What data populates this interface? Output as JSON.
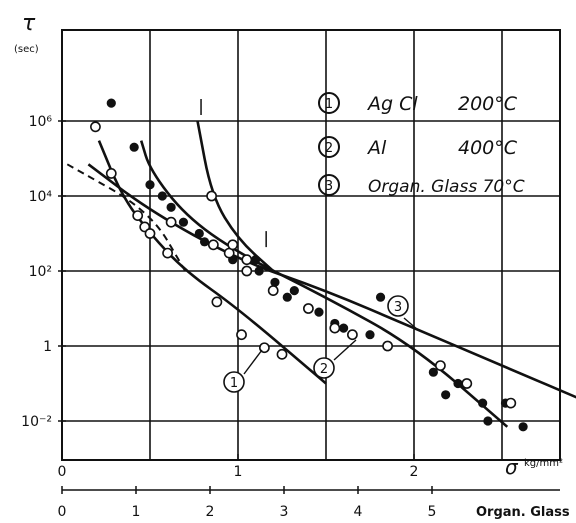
{
  "chart_data": {
    "type": "scatter",
    "title": "",
    "y_axis": {
      "label": "τ",
      "unit": "(sec)",
      "scale": "log",
      "range": [
        0.003,
        30000000
      ],
      "tick_labels": [
        {
          "v": 1000000,
          "t": "10⁶"
        },
        {
          "v": 10000,
          "t": "10⁴"
        },
        {
          "v": 100,
          "t": "10²"
        },
        {
          "v": 1,
          "t": "1"
        },
        {
          "v": 0.01,
          "t": "10⁻²"
        }
      ]
    },
    "x_axis_upper": {
      "label": "σ",
      "unit": "kg/mm²",
      "range": [
        0,
        2.8
      ],
      "ticks": [
        0,
        1,
        2
      ],
      "tick_labels": [
        "0",
        "1",
        "2"
      ]
    },
    "x_axis_lower": {
      "label": "Organ. Glass",
      "range": [
        0,
        7
      ],
      "ticks": [
        0,
        1,
        2,
        3,
        4,
        5
      ],
      "tick_labels": [
        "0",
        "1",
        "2",
        "3",
        "4",
        "5"
      ]
    },
    "grid": true,
    "legend": {
      "position": "top-right",
      "items": [
        {
          "num": "1",
          "material": "Ag Cl",
          "temp": "200°C"
        },
        {
          "num": "2",
          "material": "Al",
          "temp": "400°C"
        },
        {
          "num": "3",
          "material": "Organ. Glass 70°C",
          "temp": ""
        }
      ]
    },
    "curve_labels": [
      "1",
      "2",
      "3"
    ],
    "series": [
      {
        "name": "1",
        "marker": "open",
        "curve": [
          [
            0.21,
            300000
          ],
          [
            0.34,
            10000
          ],
          [
            0.5,
            1000
          ],
          [
            0.7,
            100
          ],
          [
            1.0,
            10
          ],
          [
            1.5,
            0.1
          ]
        ],
        "points": [
          [
            0.19,
            700000
          ],
          [
            0.28,
            40000
          ],
          [
            0.47,
            1500
          ],
          [
            0.5,
            1000
          ],
          [
            0.6,
            300
          ],
          [
            0.88,
            15
          ],
          [
            1.02,
            2
          ],
          [
            1.15,
            0.9
          ],
          [
            1.25,
            0.6
          ]
        ]
      },
      {
        "name": "2",
        "marker": "filled",
        "curve": [
          [
            0.45,
            300000
          ],
          [
            0.5,
            50000
          ],
          [
            0.7,
            3000
          ],
          [
            1.0,
            300
          ],
          [
            1.5,
            20
          ],
          [
            2.0,
            1
          ],
          [
            2.53,
            0.007
          ]
        ],
        "points": [
          [
            0.28,
            3000000
          ],
          [
            0.41,
            200000
          ],
          [
            0.5,
            20000
          ],
          [
            0.57,
            10000
          ],
          [
            0.62,
            5000
          ],
          [
            0.69,
            2000
          ],
          [
            0.78,
            1000
          ],
          [
            0.81,
            600
          ],
          [
            0.97,
            200
          ],
          [
            1.1,
            200
          ],
          [
            1.12,
            100
          ],
          [
            1.21,
            50
          ],
          [
            1.28,
            20
          ],
          [
            1.32,
            30
          ],
          [
            1.46,
            8
          ],
          [
            1.55,
            4
          ],
          [
            1.6,
            3
          ],
          [
            1.75,
            2
          ],
          [
            1.81,
            20
          ],
          [
            2.11,
            0.2
          ],
          [
            2.18,
            0.05
          ],
          [
            2.25,
            0.1
          ],
          [
            2.39,
            0.03
          ],
          [
            2.42,
            0.01
          ],
          [
            2.52,
            0.03
          ],
          [
            2.62,
            0.007
          ]
        ],
        "marked_x": [
          1.16
        ]
      },
      {
        "name": "3",
        "marker": "open",
        "curve": [
          [
            0.15,
            70000
          ],
          [
            0.5,
            4000
          ],
          [
            1.0,
            200
          ],
          [
            1.5,
            30
          ],
          [
            2.0,
            3
          ],
          [
            2.5,
            0.3
          ],
          [
            3.0,
            0.03
          ]
        ],
        "points": [
          [
            0.43,
            3000
          ],
          [
            0.62,
            2000
          ],
          [
            0.86,
            500
          ],
          [
            0.95,
            300
          ],
          [
            1.05,
            100
          ],
          [
            1.2,
            30
          ],
          [
            1.4,
            10
          ],
          [
            1.55,
            3
          ],
          [
            1.65,
            2
          ],
          [
            1.85,
            1
          ],
          [
            2.15,
            0.3
          ],
          [
            2.3,
            0.1
          ],
          [
            2.55,
            0.03
          ],
          [
            3.0,
            0.02
          ]
        ]
      },
      {
        "name": "1 (upper branch)",
        "marker": "open",
        "curve": [
          [
            0.77,
            1000000
          ],
          [
            0.85,
            10000
          ],
          [
            1.0,
            700
          ],
          [
            1.2,
            100
          ]
        ],
        "points": [
          [
            0.85,
            10000
          ],
          [
            0.97,
            500
          ],
          [
            1.05,
            200
          ]
        ],
        "marked_x": [
          0.79
        ]
      },
      {
        "name": "dashed",
        "marker": "none",
        "curve": [
          [
            0.03,
            70000
          ],
          [
            0.5,
            4000
          ],
          [
            0.7,
            100
          ]
        ]
      }
    ]
  }
}
